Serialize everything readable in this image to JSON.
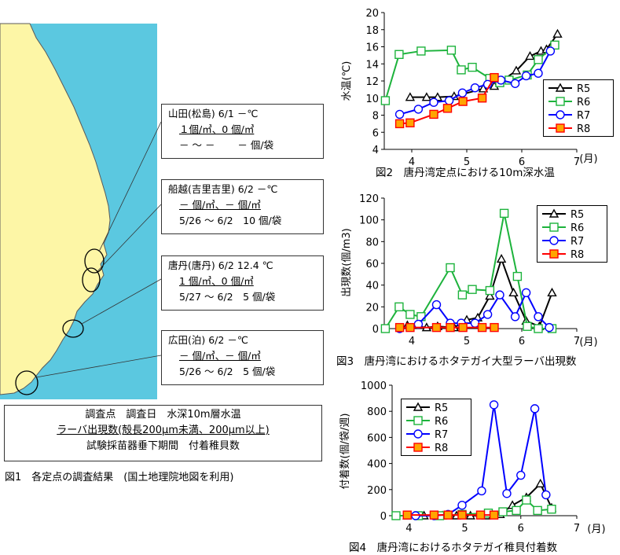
{
  "map": {
    "stations": [
      {
        "line1": "山田(松島) 6/1 －℃",
        "line2": "１個/㎥、0 個/㎥",
        "line3": "－ ～ －　　 － 個/袋"
      },
      {
        "line1": "船越(吉里吉里) 6/2 －℃",
        "line2": "－ 個/㎥、－ 個/㎥",
        "line3": "5/26 ～ 6/2　10 個/袋"
      },
      {
        "line1": "唐丹(唐丹) 6/2 12.4 ℃",
        "line2": "1 個/㎥、0 個/㎥",
        "line3": "5/27 ～ 6/2　5 個/袋"
      },
      {
        "line1": "広田(泊) 6/2 －℃",
        "line2": "－ 個/㎥、－ 個/㎥",
        "line3": "5/26 ～ 6/2　5 個/袋"
      }
    ],
    "legend": {
      "line1": "調査点　調査日　水深10m層水温",
      "line2": "ラーバ出現数(殻長200μm未満、200μm以上)",
      "line3": "試験採苗器垂下期間　付着稚貝数"
    },
    "caption": "図1　各定点の調査結果　(国土地理院地図を利用)",
    "colors": {
      "sea": "#5bc8e0",
      "land": "#fdf6a6"
    }
  },
  "chart_data": [
    {
      "id": "fig2",
      "type": "line",
      "title": "図2　唐丹湾定点における10m深水温",
      "ylabel": "水温(℃)",
      "xunit": "(月)",
      "xlim": [
        3.5,
        7.0
      ],
      "xticks": [
        4,
        5,
        6,
        7
      ],
      "ylim": [
        4,
        20
      ],
      "yticks": [
        4,
        6,
        8,
        10,
        12,
        14,
        16,
        18,
        20
      ],
      "legend_position": "right",
      "series": [
        {
          "name": "R5",
          "color": "#000000",
          "marker": "triangle",
          "filled": false,
          "x": [
            3.97,
            4.27,
            4.47,
            4.77,
            5.3,
            5.5,
            5.9,
            6.15,
            6.35,
            6.45,
            6.65
          ],
          "y": [
            10.1,
            10.1,
            10.1,
            10.2,
            11.1,
            11.4,
            13.2,
            14.9,
            15.5,
            15.7,
            17.5
          ]
        },
        {
          "name": "R6",
          "color": "#1db33c",
          "marker": "square",
          "filled": false,
          "x": [
            3.52,
            3.77,
            4.17,
            4.72,
            4.9,
            5.1,
            5.42,
            5.6,
            5.77,
            6.1,
            6.3,
            6.6
          ],
          "y": [
            9.7,
            15.1,
            15.5,
            15.6,
            13.3,
            13.6,
            12.3,
            11.8,
            12.1,
            12.7,
            14.5,
            16.2
          ]
        },
        {
          "name": "R7",
          "color": "#0000ff",
          "marker": "circle",
          "filled": false,
          "x": [
            3.78,
            4.12,
            4.4,
            4.68,
            4.92,
            5.15,
            5.38,
            5.62,
            5.88,
            6.08,
            6.3,
            6.52
          ],
          "y": [
            8.1,
            8.7,
            9.5,
            9.7,
            10.6,
            11.2,
            11.6,
            12.1,
            11.7,
            12.6,
            12.9,
            15.5
          ]
        },
        {
          "name": "R8",
          "color": "#ff0000",
          "marker": "square",
          "filled": true,
          "fillColor": "#ffa500",
          "x": [
            3.78,
            3.97,
            4.4,
            4.65,
            4.93,
            5.28,
            5.5
          ],
          "y": [
            7.0,
            7.1,
            8.1,
            8.8,
            9.6,
            10.0,
            12.4
          ]
        }
      ]
    },
    {
      "id": "fig3",
      "type": "line",
      "title": "図3　唐丹湾におけるホタテガイ大型ラーバ出現数",
      "ylabel": "出現数(個/m3)",
      "xunit": "(月)",
      "xlim": [
        3.5,
        7.0
      ],
      "xticks": [
        4,
        5,
        6,
        7
      ],
      "ylim": [
        0,
        120
      ],
      "yticks": [
        0,
        20,
        40,
        60,
        80,
        100,
        120
      ],
      "legend_position": "top-right",
      "series": [
        {
          "name": "R5",
          "color": "#000000",
          "marker": "triangle",
          "filled": false,
          "x": [
            3.92,
            4.27,
            4.47,
            4.77,
            5.0,
            5.2,
            5.42,
            5.63,
            5.85,
            6.08,
            6.32,
            6.55
          ],
          "y": [
            3,
            1,
            2,
            1,
            8,
            10,
            30,
            64,
            33,
            7,
            2,
            33
          ]
        },
        {
          "name": "R6",
          "color": "#1db33c",
          "marker": "square",
          "filled": false,
          "x": [
            3.52,
            3.77,
            3.97,
            4.17,
            4.7,
            4.92,
            5.1,
            5.42,
            5.68,
            5.92,
            6.1,
            6.3,
            6.55
          ],
          "y": [
            0,
            20,
            13,
            11,
            56,
            31,
            36,
            35,
            106,
            48,
            2,
            0,
            0
          ]
        },
        {
          "name": "R7",
          "color": "#0000ff",
          "marker": "circle",
          "filled": false,
          "x": [
            3.78,
            4.12,
            4.45,
            4.7,
            4.9,
            5.15,
            5.38,
            5.6,
            5.88,
            6.08,
            6.3,
            6.5
          ],
          "y": [
            0,
            4,
            22,
            5,
            5,
            5,
            13,
            31,
            11,
            33,
            11,
            1
          ]
        },
        {
          "name": "R8",
          "color": "#ff0000",
          "marker": "square",
          "filled": true,
          "fillColor": "#ffa500",
          "x": [
            3.78,
            3.97,
            4.45,
            4.7,
            4.93,
            5.28,
            5.5
          ],
          "y": [
            1,
            1,
            1,
            1,
            1,
            1,
            1
          ]
        }
      ]
    },
    {
      "id": "fig4",
      "type": "line",
      "title": "図4　唐丹湾におけるホタテガイ稚貝付着数",
      "ylabel": "付着数(個/袋/週)",
      "xunit": "(月)",
      "xlim": [
        3.7,
        7.0
      ],
      "xticks": [
        4,
        5,
        6,
        7
      ],
      "ylim": [
        0,
        1000
      ],
      "yticks": [
        0,
        200,
        400,
        600,
        800,
        1000
      ],
      "legend_position": "top-left",
      "series": [
        {
          "name": "R5",
          "color": "#000000",
          "marker": "triangle",
          "filled": false,
          "x": [
            3.97,
            4.27,
            4.6,
            4.85,
            5.1,
            5.38,
            5.63,
            5.85,
            6.1,
            6.35,
            6.55
          ],
          "y": [
            0,
            0,
            0,
            0,
            0,
            0,
            10,
            80,
            140,
            245,
            60
          ]
        },
        {
          "name": "R6",
          "color": "#1db33c",
          "marker": "square",
          "filled": false,
          "x": [
            3.77,
            4.17,
            4.55,
            4.95,
            5.42,
            5.68,
            5.92,
            6.1,
            6.3,
            6.55
          ],
          "y": [
            0,
            0,
            0,
            10,
            20,
            30,
            40,
            120,
            40,
            50
          ]
        },
        {
          "name": "R7",
          "color": "#0000ff",
          "marker": "circle",
          "filled": false,
          "x": [
            4.12,
            4.45,
            4.7,
            4.95,
            5.3,
            5.52,
            5.75,
            6.0,
            6.25,
            6.45
          ],
          "y": [
            0,
            0,
            10,
            80,
            190,
            850,
            170,
            310,
            820,
            160
          ]
        },
        {
          "name": "R8",
          "color": "#ff0000",
          "marker": "square",
          "filled": true,
          "fillColor": "#ffa500",
          "x": [
            3.97,
            4.45,
            4.7,
            4.95,
            5.28,
            5.52
          ],
          "y": [
            5,
            5,
            5,
            5,
            5,
            5
          ]
        }
      ]
    }
  ]
}
